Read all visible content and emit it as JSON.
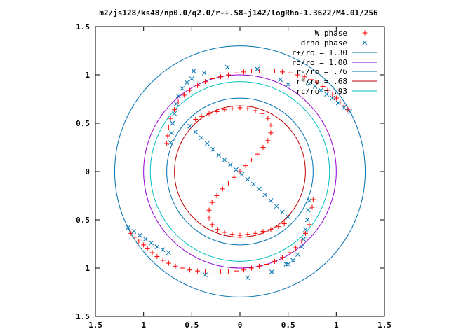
{
  "chart_data": {
    "type": "scatter",
    "title": "m2/js128/ks48/np0.0/q2.0/r-+.58-j142/logRho-1.3622/M4.01/256",
    "xlabel": "",
    "ylabel": "",
    "xlim": [
      -1.5,
      1.5
    ],
    "ylim": [
      -1.5,
      1.5
    ],
    "grid": false,
    "legend_position": "top-right",
    "x_ticks": [
      -1.5,
      -1,
      -0.5,
      0,
      0.5,
      1,
      1.5
    ],
    "x_tick_labels": [
      "1.5",
      "1",
      "0.5",
      "0",
      "0.5",
      "1",
      "1.5"
    ],
    "y_ticks": [
      1.5,
      1,
      0.5,
      0,
      -0.5,
      -1,
      -1.5
    ],
    "y_tick_labels": [
      "1.5",
      "1",
      "0.5",
      "0",
      "0.5",
      "1",
      "1.5"
    ],
    "circles": [
      {
        "name": "r+/ro = 1.30",
        "radius": 1.3,
        "color": "#0072b2"
      },
      {
        "name": "ro/ro = 1.00",
        "radius": 1.0,
        "color": "#9400d3"
      },
      {
        "name": "r-/ro = .76",
        "radius": 0.76,
        "color": "#0072b2"
      },
      {
        "name": "r*/ro = .68",
        "radius": 0.68,
        "color": "#c00000"
      },
      {
        "name": "rc/ro = .93",
        "radius": 0.93,
        "color": "#00c0c0"
      }
    ],
    "series": [
      {
        "name": "W phase",
        "marker": "plus",
        "color": "#ff0000",
        "points": [
          [
            1.12,
            0.64
          ],
          [
            1.08,
            0.68
          ],
          [
            1.04,
            0.72
          ],
          [
            1.0,
            0.76
          ],
          [
            0.96,
            0.8
          ],
          [
            0.91,
            0.84
          ],
          [
            0.86,
            0.88
          ],
          [
            0.8,
            0.92
          ],
          [
            0.74,
            0.95
          ],
          [
            0.67,
            0.98
          ],
          [
            0.6,
            1.0
          ],
          [
            0.52,
            1.02
          ],
          [
            0.44,
            1.03
          ],
          [
            0.36,
            1.04
          ],
          [
            0.28,
            1.04
          ],
          [
            0.2,
            1.04
          ],
          [
            0.12,
            1.04
          ],
          [
            0.04,
            1.03
          ],
          [
            -0.04,
            1.02
          ],
          [
            -0.12,
            1.0
          ],
          [
            -0.2,
            0.98
          ],
          [
            -0.28,
            0.96
          ],
          [
            -0.36,
            0.93
          ],
          [
            -0.44,
            0.89
          ],
          [
            -0.52,
            0.84
          ],
          [
            -0.58,
            0.79
          ],
          [
            -0.64,
            0.72
          ],
          [
            -0.68,
            0.64
          ],
          [
            -0.72,
            0.55
          ],
          [
            -0.74,
            0.46
          ],
          [
            -0.75,
            0.37
          ],
          [
            -0.76,
            0.29
          ],
          [
            -1.13,
            -0.64
          ],
          [
            -1.09,
            -0.68
          ],
          [
            -1.05,
            -0.72
          ],
          [
            -1.0,
            -0.76
          ],
          [
            -0.96,
            -0.8
          ],
          [
            -0.91,
            -0.84
          ],
          [
            -0.86,
            -0.88
          ],
          [
            -0.8,
            -0.92
          ],
          [
            -0.74,
            -0.95
          ],
          [
            -0.67,
            -0.98
          ],
          [
            -0.6,
            -1.0
          ],
          [
            -0.52,
            -1.02
          ],
          [
            -0.44,
            -1.03
          ],
          [
            -0.36,
            -1.04
          ],
          [
            -0.28,
            -1.04
          ],
          [
            -0.2,
            -1.04
          ],
          [
            -0.12,
            -1.04
          ],
          [
            -0.04,
            -1.03
          ],
          [
            0.04,
            -1.02
          ],
          [
            0.12,
            -1.0
          ],
          [
            0.2,
            -0.98
          ],
          [
            0.28,
            -0.96
          ],
          [
            0.36,
            -0.93
          ],
          [
            0.44,
            -0.89
          ],
          [
            0.52,
            -0.84
          ],
          [
            0.58,
            -0.79
          ],
          [
            0.64,
            -0.72
          ],
          [
            0.68,
            -0.64
          ],
          [
            0.72,
            -0.55
          ],
          [
            0.74,
            -0.46
          ],
          [
            0.75,
            -0.37
          ],
          [
            0.76,
            -0.29
          ],
          [
            0.0,
            0.0
          ],
          [
            -0.06,
            -0.06
          ],
          [
            -0.12,
            -0.12
          ],
          [
            -0.18,
            -0.18
          ],
          [
            -0.24,
            -0.25
          ],
          [
            -0.29,
            -0.32
          ],
          [
            -0.32,
            -0.4
          ],
          [
            -0.32,
            -0.48
          ],
          [
            -0.29,
            -0.55
          ],
          [
            -0.23,
            -0.6
          ],
          [
            -0.16,
            -0.63
          ],
          [
            -0.08,
            -0.65
          ],
          [
            0.0,
            -0.66
          ],
          [
            0.08,
            -0.65
          ],
          [
            0.16,
            -0.64
          ],
          [
            0.24,
            -0.62
          ],
          [
            0.32,
            -0.6
          ],
          [
            0.4,
            -0.57
          ],
          [
            0.46,
            -0.54
          ],
          [
            0.06,
            0.06
          ],
          [
            0.12,
            0.12
          ],
          [
            0.18,
            0.18
          ],
          [
            0.24,
            0.25
          ],
          [
            0.29,
            0.32
          ],
          [
            0.32,
            0.4
          ],
          [
            0.32,
            0.48
          ],
          [
            0.29,
            0.55
          ],
          [
            0.23,
            0.6
          ],
          [
            0.16,
            0.63
          ],
          [
            0.08,
            0.65
          ],
          [
            0.0,
            0.66
          ],
          [
            -0.08,
            0.65
          ],
          [
            -0.16,
            0.64
          ],
          [
            -0.24,
            0.62
          ],
          [
            -0.32,
            0.6
          ],
          [
            -0.4,
            0.57
          ],
          [
            -0.46,
            0.54
          ]
        ]
      },
      {
        "name": "drho phase",
        "marker": "cross",
        "color": "#0072b2",
        "points": [
          [
            1.14,
            0.62
          ],
          [
            1.08,
            0.66
          ],
          [
            1.02,
            0.71
          ],
          [
            0.96,
            0.76
          ],
          [
            0.9,
            0.8
          ],
          [
            0.84,
            0.84
          ],
          [
            0.78,
            0.88
          ],
          [
            0.72,
            0.91
          ],
          [
            -1.16,
            -0.58
          ],
          [
            -1.1,
            -0.62
          ],
          [
            -1.04,
            -0.66
          ],
          [
            -0.98,
            -0.7
          ],
          [
            -0.92,
            -0.74
          ],
          [
            -0.86,
            -0.78
          ],
          [
            -0.8,
            -0.81
          ],
          [
            -0.74,
            -0.84
          ],
          [
            -0.72,
            0.3
          ],
          [
            -0.71,
            0.4
          ],
          [
            -0.7,
            0.5
          ],
          [
            -0.68,
            0.6
          ],
          [
            -0.66,
            0.7
          ],
          [
            -0.64,
            0.78
          ],
          [
            -0.6,
            0.86
          ],
          [
            -0.55,
            0.92
          ],
          [
            -0.5,
            0.96
          ],
          [
            0.72,
            -0.3
          ],
          [
            0.71,
            -0.4
          ],
          [
            0.7,
            -0.5
          ],
          [
            0.68,
            -0.6
          ],
          [
            0.66,
            -0.7
          ],
          [
            0.64,
            -0.78
          ],
          [
            0.6,
            -0.86
          ],
          [
            0.55,
            -0.92
          ],
          [
            0.5,
            -0.96
          ],
          [
            -0.52,
            0.47
          ],
          [
            -0.46,
            0.41
          ],
          [
            -0.4,
            0.35
          ],
          [
            -0.34,
            0.29
          ],
          [
            -0.28,
            0.23
          ],
          [
            -0.22,
            0.17
          ],
          [
            -0.16,
            0.12
          ],
          [
            -0.1,
            0.07
          ],
          [
            -0.04,
            0.02
          ],
          [
            0.02,
            -0.03
          ],
          [
            0.08,
            -0.08
          ],
          [
            0.14,
            -0.13
          ],
          [
            0.2,
            -0.18
          ],
          [
            0.26,
            -0.24
          ],
          [
            0.32,
            -0.3
          ],
          [
            0.38,
            -0.36
          ],
          [
            0.44,
            -0.42
          ],
          [
            0.5,
            -0.47
          ],
          [
            -0.36,
            -1.07
          ],
          [
            0.08,
            -1.1
          ],
          [
            0.33,
            -1.04
          ],
          [
            0.48,
            -0.96
          ],
          [
            -0.48,
            1.04
          ],
          [
            -0.37,
            1.02
          ],
          [
            -0.13,
            1.08
          ],
          [
            0.18,
            1.06
          ],
          [
            0.42,
            0.95
          ],
          [
            0.5,
            0.9
          ]
        ]
      }
    ]
  }
}
